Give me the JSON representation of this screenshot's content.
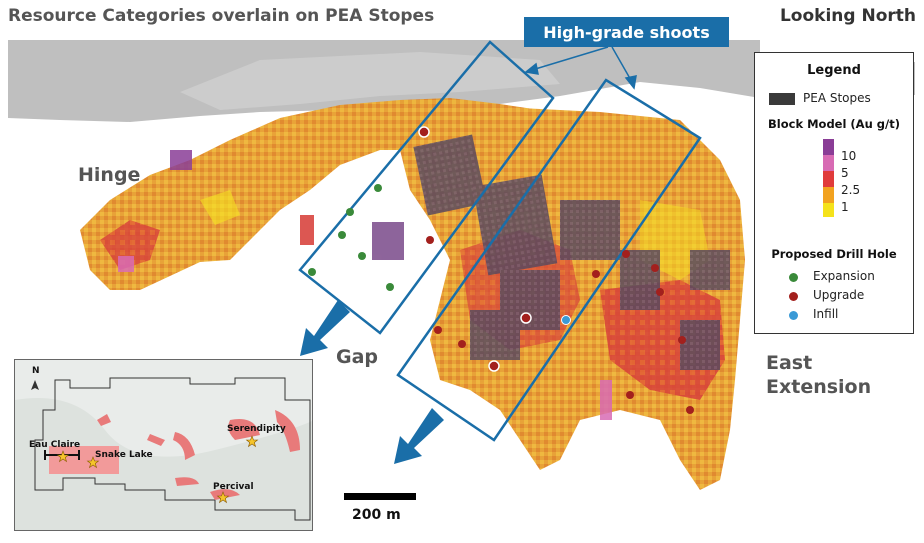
{
  "title": "Resource Categories overlain on PEA Stopes",
  "view": "Looking North",
  "callout": "High-grade shoots",
  "zones": {
    "hinge": "Hinge",
    "gap": "Gap",
    "east_extension_1": "East",
    "east_extension_2": "Extension"
  },
  "legend": {
    "title": "Legend",
    "stopes_label": "PEA Stopes",
    "block_model_title": "Block Model (Au g/t)",
    "grades": [
      "10",
      "5",
      "2.5",
      "1"
    ],
    "grade_colors": [
      "#8a3d96",
      "#d86bb4",
      "#e03b3b",
      "#f2a21f",
      "#f5e21b"
    ],
    "drill_title": "Proposed Drill Hole",
    "drill_holes": [
      {
        "label": "Expansion",
        "color": "#3a8a3a"
      },
      {
        "label": "Upgrade",
        "color": "#a3201d"
      },
      {
        "label": "Infill",
        "color": "#3b9ad6"
      }
    ]
  },
  "scale": {
    "label": "200 m"
  },
  "inset": {
    "north": "N",
    "places": [
      "Eau Claire",
      "Snake Lake",
      "Serendipity",
      "Percival"
    ]
  },
  "colors": {
    "callout_blue": "#1a6ea8",
    "topography": "#bfbfbf",
    "deposit_pink": "#e87a7a"
  }
}
